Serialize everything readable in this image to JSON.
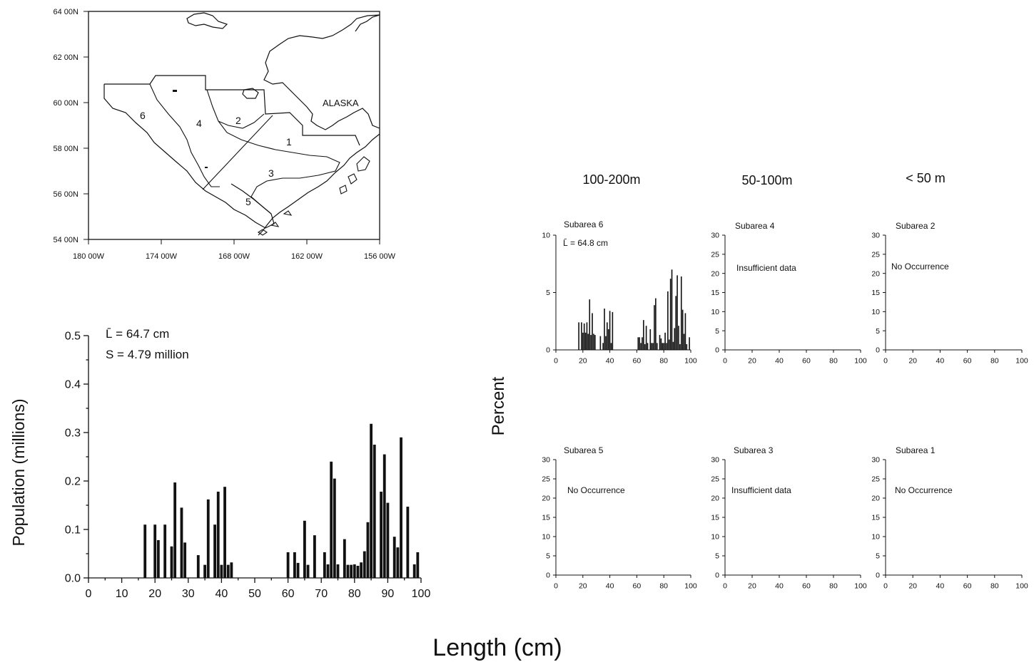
{
  "map": {
    "lat_labels": [
      "64 00N",
      "62 00N",
      "60 00N",
      "58 00N",
      "56 00N",
      "54 00N"
    ],
    "lon_labels": [
      "180 00W",
      "174 00W",
      "168 00W",
      "162 00W",
      "156 00W"
    ],
    "region_label": "ALASKA",
    "subarea_numbers": [
      "1",
      "2",
      "3",
      "4",
      "5",
      "6"
    ]
  },
  "main_chart": {
    "ylabel": "Population (millions)",
    "mean_label": "L̄ =  64.7 cm",
    "s_label": "S =  4.79 million"
  },
  "xlabel": "Length (cm)",
  "percent_label": "Percent",
  "depth_headers": [
    "100-200m",
    "50-100m",
    "< 50 m"
  ],
  "panels": {
    "sub6": {
      "title": "Subarea 6",
      "mean": "L̄ =   64.8 cm"
    },
    "sub4": {
      "title": "Subarea 4",
      "note": "Insufficient data"
    },
    "sub2": {
      "title": "Subarea 2",
      "note": "No Occurrence"
    },
    "sub5": {
      "title": "Subarea 5",
      "note": "No Occurrence"
    },
    "sub3": {
      "title": "Subarea 3",
      "note": "Insufficient data"
    },
    "sub1": {
      "title": "Subarea 1",
      "note": "No Occurrence"
    }
  },
  "chart_data": [
    {
      "type": "bar",
      "title": "",
      "xlabel": "Length (cm)",
      "ylabel": "Population (millions)",
      "xlim": [
        0,
        100
      ],
      "ylim": [
        0,
        0.5
      ],
      "x_ticks": [
        0,
        10,
        20,
        30,
        40,
        50,
        60,
        70,
        80,
        90,
        100
      ],
      "y_ticks": [
        0.0,
        0.1,
        0.2,
        0.3,
        0.4,
        0.5
      ],
      "y_tick_labels": [
        "0.0",
        "0.1",
        "0.2",
        "0.3",
        "0.4",
        "0.5"
      ],
      "x": [
        17,
        20,
        21,
        23,
        25,
        26,
        28,
        29,
        33,
        35,
        36,
        38,
        39,
        40,
        41,
        42,
        43,
        60,
        62,
        63,
        65,
        66,
        68,
        71,
        72,
        73,
        74,
        75,
        77,
        78,
        79,
        80,
        81,
        82,
        83,
        84,
        85,
        86,
        88,
        89,
        90,
        92,
        93,
        94,
        96,
        98,
        99
      ],
      "values": [
        0.11,
        0.11,
        0.078,
        0.11,
        0.065,
        0.197,
        0.145,
        0.073,
        0.047,
        0.027,
        0.162,
        0.11,
        0.178,
        0.027,
        0.188,
        0.027,
        0.032,
        0.053,
        0.053,
        0.031,
        0.118,
        0.027,
        0.088,
        0.053,
        0.028,
        0.24,
        0.205,
        0.028,
        0.08,
        0.027,
        0.027,
        0.028,
        0.025,
        0.032,
        0.055,
        0.115,
        0.318,
        0.275,
        0.178,
        0.255,
        0.155,
        0.085,
        0.063,
        0.29,
        0.147,
        0.028,
        0.053
      ]
    },
    {
      "type": "bar",
      "title": "Subarea 6",
      "xlim": [
        0,
        100
      ],
      "ylim": [
        0,
        10
      ],
      "x_ticks": [
        0,
        20,
        40,
        60,
        80,
        100
      ],
      "y_ticks": [
        0,
        5,
        10
      ],
      "x": [
        17,
        19,
        20,
        21,
        22,
        23,
        24,
        25,
        26,
        27,
        28,
        29,
        33,
        35,
        36,
        37,
        38,
        39,
        40,
        41,
        42,
        61,
        62,
        63,
        64,
        65,
        66,
        67,
        68,
        70,
        71,
        72,
        73,
        74,
        75,
        77,
        78,
        79,
        80,
        81,
        82,
        83,
        84,
        85,
        86,
        87,
        88,
        89,
        90,
        91,
        92,
        93,
        94,
        95,
        96,
        97,
        99
      ],
      "values": [
        2.4,
        2.4,
        1.5,
        2.3,
        1.5,
        2.4,
        1.4,
        4.4,
        1.3,
        3.2,
        1.4,
        1.3,
        1.2,
        0.6,
        3.6,
        1.2,
        2.4,
        1.8,
        3.4,
        0.6,
        3.3,
        1.1,
        1.1,
        0.6,
        1.1,
        2.6,
        0.5,
        2.1,
        0.6,
        1.8,
        0.6,
        0.6,
        3.9,
        4.5,
        0.6,
        1.3,
        1.0,
        0.6,
        0.6,
        1.5,
        0.6,
        5.1,
        0.9,
        6.2,
        7.0,
        0.7,
        1.9,
        4.7,
        6.5,
        2.1,
        0.5,
        6.4,
        3.5,
        1.4,
        3.2,
        0.5,
        1.1
      ]
    },
    {
      "type": "bar",
      "title": "Subarea 4",
      "xlim": [
        0,
        100
      ],
      "ylim": [
        0,
        30
      ],
      "x_ticks": [
        0,
        20,
        40,
        60,
        80,
        100
      ],
      "y_ticks": [
        0,
        5,
        10,
        15,
        20,
        25,
        30
      ],
      "x": [],
      "values": []
    },
    {
      "type": "bar",
      "title": "Subarea 2",
      "xlim": [
        0,
        100
      ],
      "ylim": [
        0,
        30
      ],
      "x_ticks": [
        0,
        20,
        40,
        60,
        80,
        100
      ],
      "y_ticks": [
        0,
        5,
        10,
        15,
        20,
        25,
        30
      ],
      "x": [],
      "values": []
    },
    {
      "type": "bar",
      "title": "Subarea 5",
      "xlim": [
        0,
        100
      ],
      "ylim": [
        0,
        30
      ],
      "x_ticks": [
        0,
        20,
        40,
        60,
        80,
        100
      ],
      "y_ticks": [
        0,
        5,
        10,
        15,
        20,
        25,
        30
      ],
      "x": [],
      "values": []
    },
    {
      "type": "bar",
      "title": "Subarea 3",
      "xlim": [
        0,
        100
      ],
      "ylim": [
        0,
        30
      ],
      "x_ticks": [
        0,
        20,
        40,
        60,
        80,
        100
      ],
      "y_ticks": [
        0,
        5,
        10,
        15,
        20,
        25,
        30
      ],
      "x": [],
      "values": []
    },
    {
      "type": "bar",
      "title": "Subarea 1",
      "xlim": [
        0,
        100
      ],
      "ylim": [
        0,
        30
      ],
      "x_ticks": [
        0,
        20,
        40,
        60,
        80,
        100
      ],
      "y_ticks": [
        0,
        5,
        10,
        15,
        20,
        25,
        30
      ],
      "x": [],
      "values": []
    }
  ]
}
